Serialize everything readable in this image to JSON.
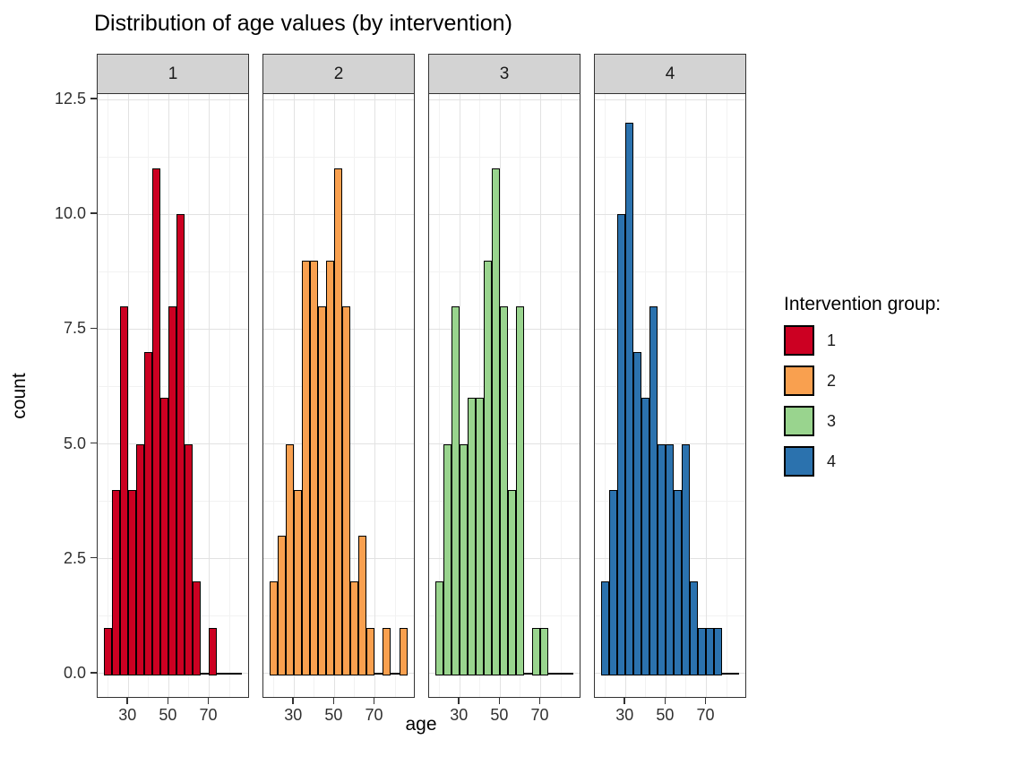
{
  "chart_data": {
    "type": "bar",
    "subtype": "faceted-histogram",
    "title": "Distribution of age values (by intervention)",
    "xlabel": "age",
    "ylabel": "count",
    "grid": "major-and-minor",
    "bin_start_age": 18,
    "bin_width_years": 4,
    "x_domain": [
      14.8,
      90.2
    ],
    "y_domain": [
      -0.55,
      12.62
    ],
    "x_ticks": [
      30,
      50,
      70
    ],
    "x_minor_ticks": [
      20,
      40,
      60,
      80
    ],
    "y_ticks": [
      {
        "value": 0,
        "label": "0.0"
      },
      {
        "value": 2.5,
        "label": "2.5"
      },
      {
        "value": 5,
        "label": "5.0"
      },
      {
        "value": 7.5,
        "label": "7.5"
      },
      {
        "value": 10,
        "label": "10.0"
      },
      {
        "value": 12.5,
        "label": "12.5"
      }
    ],
    "y_minor_ticks": [
      1.25,
      3.75,
      6.25,
      8.75,
      11.25
    ],
    "bin_start_ages": [
      18,
      22,
      26,
      30,
      34,
      38,
      42,
      46,
      50,
      54,
      58,
      62,
      66,
      70,
      74,
      78,
      82
    ],
    "facets": [
      {
        "label": "1",
        "color": "#cc0022",
        "counts": [
          1,
          4,
          8,
          4,
          5,
          7,
          11,
          6,
          8,
          10,
          5,
          2,
          0,
          1,
          0,
          0,
          0
        ]
      },
      {
        "label": "2",
        "color": "#f9a04f",
        "counts": [
          2,
          3,
          5,
          4,
          9,
          9,
          8,
          9,
          11,
          8,
          2,
          3,
          1,
          0,
          1,
          0,
          1
        ]
      },
      {
        "label": "3",
        "color": "#99d48e",
        "counts": [
          2,
          5,
          8,
          5,
          6,
          6,
          9,
          11,
          8,
          4,
          8,
          0,
          1,
          1,
          0,
          0,
          0
        ]
      },
      {
        "label": "4",
        "color": "#2b72ae",
        "counts": [
          2,
          4,
          10,
          12,
          7,
          6,
          8,
          5,
          5,
          4,
          5,
          2,
          1,
          1,
          1,
          0,
          0
        ]
      }
    ],
    "legend": {
      "title": "Intervention group:",
      "position": "right",
      "items": [
        {
          "label": "1",
          "color": "#cc0022"
        },
        {
          "label": "2",
          "color": "#f9a04f"
        },
        {
          "label": "3",
          "color": "#99d48e"
        },
        {
          "label": "4",
          "color": "#2b72ae"
        }
      ]
    }
  }
}
